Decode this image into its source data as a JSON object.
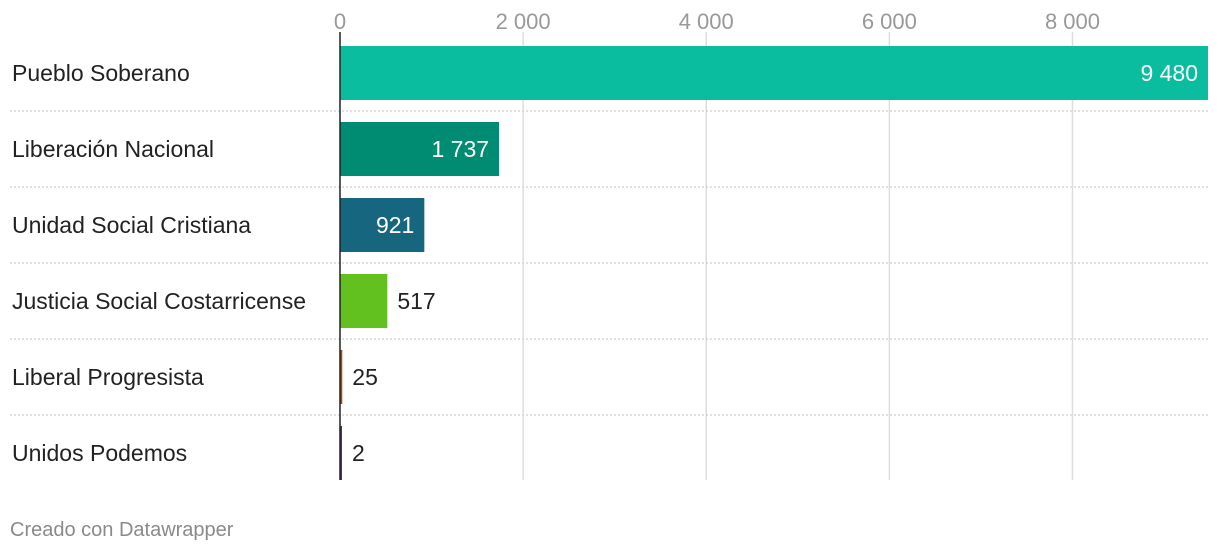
{
  "chart_data": {
    "type": "bar",
    "orientation": "horizontal",
    "categories": [
      "Pueblo Soberano",
      "Liberación Nacional",
      "Unidad Social Cristiana",
      "Justicia Social Costarricense",
      "Liberal Progresista",
      "Unidos Podemos"
    ],
    "values": [
      9480,
      1737,
      921,
      517,
      25,
      2
    ],
    "value_labels": [
      "9 480",
      "1 737",
      "921",
      "517",
      "25",
      "2"
    ],
    "colors": [
      "#0bbd9f",
      "#008c72",
      "#176680",
      "#63c11f",
      "#b34700",
      "#6a1c9a"
    ],
    "xlim": [
      0,
      9480
    ],
    "xticks": [
      0,
      2000,
      4000,
      6000,
      8000
    ],
    "xtick_labels": [
      "0",
      "2 000",
      "4 000",
      "6 000",
      "8 000"
    ],
    "grid": true,
    "axis_position": "top"
  },
  "footer": {
    "credit": "Creado con Datawrapper"
  }
}
